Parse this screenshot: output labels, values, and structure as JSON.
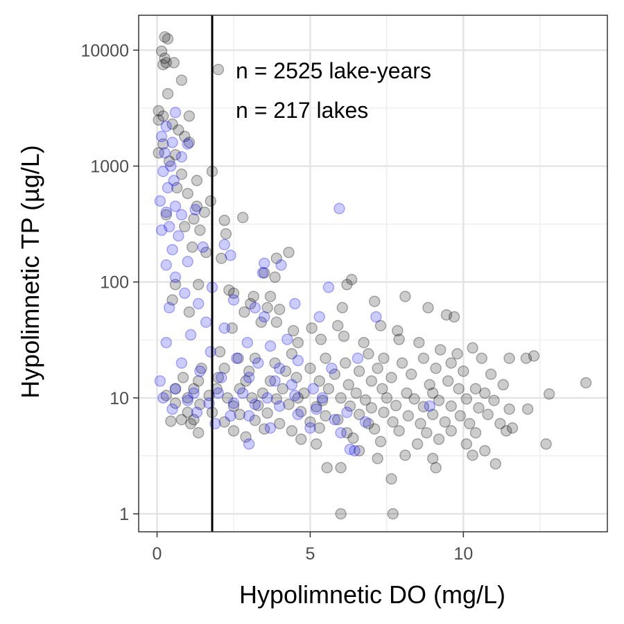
{
  "chart_data": {
    "type": "scatter",
    "title": "",
    "xlabel": "Hypolimnetic DO (mg/L)",
    "ylabel": "Hypolimnetic TP (µg/L)",
    "xlim": [
      -0.6,
      14.7
    ],
    "ylim": [
      0.7,
      20000
    ],
    "y_scale": "log10",
    "x_ticks": [
      0,
      5,
      10
    ],
    "x_tick_labels": [
      "0",
      "5",
      "10"
    ],
    "y_ticks": [
      1,
      10,
      100,
      1000,
      10000
    ],
    "y_tick_labels": [
      "1",
      "10",
      "100",
      "1000",
      "10000"
    ],
    "grid": true,
    "legend": "none",
    "vline": {
      "x": 1.8,
      "color": "#000000"
    },
    "annotations": [
      "n = 2525 lake-years",
      "n = 217 lakes"
    ],
    "series": [
      {
        "color": "#000000",
        "points": [
          [
            0.25,
            13000
          ],
          [
            0.35,
            12500
          ],
          [
            0.15,
            9800
          ],
          [
            0.25,
            8500
          ],
          [
            0.3,
            7800
          ],
          [
            0.2,
            7500
          ],
          [
            0.55,
            7800
          ],
          [
            2.0,
            6800
          ],
          [
            0.8,
            5500
          ],
          [
            0.35,
            4200
          ],
          [
            0.05,
            3000
          ],
          [
            0.2,
            2700
          ],
          [
            1.05,
            2700
          ],
          [
            0.05,
            2500
          ],
          [
            0.5,
            2300
          ],
          [
            0.7,
            2050
          ],
          [
            0.9,
            1800
          ],
          [
            1.05,
            1600
          ],
          [
            0.2,
            1550
          ],
          [
            0.05,
            1300
          ],
          [
            0.6,
            1250
          ],
          [
            0.4,
            1100
          ],
          [
            1.8,
            900
          ],
          [
            0.8,
            850
          ],
          [
            1.3,
            750
          ],
          [
            0.65,
            650
          ],
          [
            1.0,
            580
          ],
          [
            1.75,
            500
          ],
          [
            1.3,
            450
          ],
          [
            1.55,
            400
          ],
          [
            0.3,
            380
          ],
          [
            1.2,
            350
          ],
          [
            2.2,
            340
          ],
          [
            2.8,
            360
          ],
          [
            0.9,
            300
          ],
          [
            1.4,
            280
          ],
          [
            2.25,
            260
          ],
          [
            1.15,
            200
          ],
          [
            1.6,
            180
          ],
          [
            2.1,
            160
          ],
          [
            3.9,
            160
          ],
          [
            4.3,
            180
          ],
          [
            3.5,
            120
          ],
          [
            3.85,
            110
          ],
          [
            0.6,
            95
          ],
          [
            1.35,
            95
          ],
          [
            2.35,
            85
          ],
          [
            2.5,
            80
          ],
          [
            3.15,
            75
          ],
          [
            3.7,
            75
          ],
          [
            0.5,
            70
          ],
          [
            6.2,
            95
          ],
          [
            6.35,
            105
          ],
          [
            3.05,
            65
          ],
          [
            3.6,
            60
          ],
          [
            4.0,
            58
          ],
          [
            2.85,
            55
          ],
          [
            1.05,
            55
          ],
          [
            3.4,
            45
          ],
          [
            3.9,
            45
          ],
          [
            6.05,
            60
          ],
          [
            7.1,
            68
          ],
          [
            8.1,
            75
          ],
          [
            8.85,
            60
          ],
          [
            2.45,
            40
          ],
          [
            4.45,
            38
          ],
          [
            5.05,
            40
          ],
          [
            5.9,
            42
          ],
          [
            7.3,
            42
          ],
          [
            7.85,
            38
          ],
          [
            9.45,
            52
          ],
          [
            9.7,
            50
          ],
          [
            4.6,
            30
          ],
          [
            5.35,
            32
          ],
          [
            6.1,
            34
          ],
          [
            6.75,
            30
          ],
          [
            7.9,
            32
          ],
          [
            8.55,
            30
          ],
          [
            9.25,
            26
          ],
          [
            9.8,
            24
          ],
          [
            10.3,
            27
          ],
          [
            2.05,
            25
          ],
          [
            2.65,
            22
          ],
          [
            3.2,
            22
          ],
          [
            3.85,
            20
          ],
          [
            4.4,
            24
          ],
          [
            5.5,
            22
          ],
          [
            6.15,
            20
          ],
          [
            6.9,
            24
          ],
          [
            7.4,
            22
          ],
          [
            8.0,
            20
          ],
          [
            8.7,
            22
          ],
          [
            9.6,
            20
          ],
          [
            10.6,
            22
          ],
          [
            11.5,
            22
          ],
          [
            12.05,
            22
          ],
          [
            12.3,
            23
          ],
          [
            1.45,
            18
          ],
          [
            2.2,
            18
          ],
          [
            3.0,
            17
          ],
          [
            4.2,
            17
          ],
          [
            5.0,
            18
          ],
          [
            5.8,
            16
          ],
          [
            6.6,
            17
          ],
          [
            7.2,
            18
          ],
          [
            8.3,
            16
          ],
          [
            9.1,
            18
          ],
          [
            10.0,
            17
          ],
          [
            10.9,
            16
          ],
          [
            0.85,
            15
          ],
          [
            1.35,
            14
          ],
          [
            2.0,
            15
          ],
          [
            2.9,
            14
          ],
          [
            3.7,
            14
          ],
          [
            4.55,
            15
          ],
          [
            5.3,
            14
          ],
          [
            6.25,
            13
          ],
          [
            7.0,
            14
          ],
          [
            7.65,
            15
          ],
          [
            8.9,
            13
          ],
          [
            9.5,
            14
          ],
          [
            10.4,
            12
          ],
          [
            11.3,
            13
          ],
          [
            0.6,
            12
          ],
          [
            1.2,
            12
          ],
          [
            1.95,
            12
          ],
          [
            2.7,
            12
          ],
          [
            3.45,
            11
          ],
          [
            4.1,
            12
          ],
          [
            4.8,
            11
          ],
          [
            5.6,
            12
          ],
          [
            6.5,
            11
          ],
          [
            7.35,
            12
          ],
          [
            8.15,
            11
          ],
          [
            9.0,
            11
          ],
          [
            9.85,
            12
          ],
          [
            10.7,
            11
          ],
          [
            12.8,
            10.8
          ],
          [
            14.0,
            13.5
          ],
          [
            0.3,
            10.5
          ],
          [
            1.0,
            10
          ],
          [
            1.7,
            10.5
          ],
          [
            2.3,
            10
          ],
          [
            3.1,
            10
          ],
          [
            3.9,
            9.8
          ],
          [
            4.6,
            10
          ],
          [
            5.4,
            9.5
          ],
          [
            6.0,
            10
          ],
          [
            6.8,
            9.6
          ],
          [
            7.5,
            10
          ],
          [
            8.4,
            9.8
          ],
          [
            9.2,
            9.5
          ],
          [
            10.1,
            9.8
          ],
          [
            11.0,
            9.5
          ],
          [
            0.6,
            9
          ],
          [
            1.4,
            8.8
          ],
          [
            2.5,
            8.5
          ],
          [
            3.3,
            8.6
          ],
          [
            4.3,
            8.8
          ],
          [
            5.2,
            8.4
          ],
          [
            6.3,
            8.5
          ],
          [
            7.0,
            8.2
          ],
          [
            7.8,
            8.6
          ],
          [
            8.7,
            8.4
          ],
          [
            9.6,
            8.5
          ],
          [
            10.5,
            8.2
          ],
          [
            11.5,
            8.0
          ],
          [
            12.1,
            8.0
          ],
          [
            1.0,
            7.5
          ],
          [
            1.8,
            7.5
          ],
          [
            2.7,
            7.2
          ],
          [
            3.6,
            7.4
          ],
          [
            4.7,
            7.6
          ],
          [
            5.5,
            7.0
          ],
          [
            6.6,
            7.2
          ],
          [
            7.4,
            7.5
          ],
          [
            8.2,
            7.0
          ],
          [
            9.0,
            7.2
          ],
          [
            9.9,
            7.0
          ],
          [
            10.8,
            7.2
          ],
          [
            0.8,
            6.5
          ],
          [
            1.2,
            6.5
          ],
          [
            2.2,
            6.2
          ],
          [
            3.2,
            6.4
          ],
          [
            4.0,
            6.0
          ],
          [
            5.0,
            6.2
          ],
          [
            5.9,
            6.5
          ],
          [
            6.9,
            6.0
          ],
          [
            7.7,
            6.2
          ],
          [
            8.6,
            6.0
          ],
          [
            9.4,
            6.2
          ],
          [
            10.2,
            6.0
          ],
          [
            11.2,
            6.0
          ],
          [
            11.6,
            5.5
          ],
          [
            12.7,
            4.0
          ],
          [
            0.45,
            6.3
          ],
          [
            1.1,
            6.0
          ],
          [
            1.35,
            5.0
          ],
          [
            2.5,
            5.2
          ],
          [
            3.5,
            5.4
          ],
          [
            4.4,
            5.2
          ],
          [
            5.3,
            5.5
          ],
          [
            6.2,
            5.0
          ],
          [
            7.1,
            5.4
          ],
          [
            7.9,
            5.2
          ],
          [
            8.8,
            5.0
          ],
          [
            9.6,
            5.2
          ],
          [
            10.4,
            5.0
          ],
          [
            11.4,
            5.2
          ],
          [
            2.9,
            4.6
          ],
          [
            4.7,
            4.4
          ],
          [
            5.2,
            4.0
          ],
          [
            6.4,
            4.5
          ],
          [
            7.3,
            4.2
          ],
          [
            8.5,
            4.0
          ],
          [
            9.2,
            4.4
          ],
          [
            10.1,
            4.0
          ],
          [
            10.7,
            3.5
          ],
          [
            6.6,
            3.5
          ],
          [
            7.2,
            3.0
          ],
          [
            8.1,
            3.2
          ],
          [
            9.0,
            3.0
          ],
          [
            10.3,
            3.2
          ],
          [
            5.55,
            2.5
          ],
          [
            6.0,
            2.5
          ],
          [
            7.65,
            2.0
          ],
          [
            9.1,
            2.5
          ],
          [
            11.05,
            2.7
          ],
          [
            6.0,
            1.0
          ],
          [
            7.7,
            1.0
          ]
        ]
      },
      {
        "color": "#0000ff",
        "points": [
          [
            0.6,
            2900
          ],
          [
            0.3,
            2200
          ],
          [
            0.15,
            1800
          ],
          [
            0.5,
            1600
          ],
          [
            1.0,
            1550
          ],
          [
            0.25,
            1300
          ],
          [
            0.8,
            1200
          ],
          [
            0.45,
            1000
          ],
          [
            0.2,
            900
          ],
          [
            0.55,
            750
          ],
          [
            0.35,
            650
          ],
          [
            0.1,
            500
          ],
          [
            0.6,
            450
          ],
          [
            0.3,
            400
          ],
          [
            1.25,
            420
          ],
          [
            0.8,
            380
          ],
          [
            0.4,
            300
          ],
          [
            0.15,
            280
          ],
          [
            0.7,
            250
          ],
          [
            1.5,
            200
          ],
          [
            2.2,
            210
          ],
          [
            0.5,
            190
          ],
          [
            2.4,
            170
          ],
          [
            1.0,
            150
          ],
          [
            0.3,
            140
          ],
          [
            3.5,
            145
          ],
          [
            4.05,
            140
          ],
          [
            3.45,
            120
          ],
          [
            0.6,
            110
          ],
          [
            4.5,
            65
          ],
          [
            5.95,
            430
          ],
          [
            5.6,
            90
          ],
          [
            1.8,
            90
          ],
          [
            0.9,
            80
          ],
          [
            2.5,
            70
          ],
          [
            1.35,
            65
          ],
          [
            3.2,
            60
          ],
          [
            0.4,
            60
          ],
          [
            3.5,
            50
          ],
          [
            5.3,
            50
          ],
          [
            7.15,
            50
          ],
          [
            1.6,
            45
          ],
          [
            2.2,
            40
          ],
          [
            1.1,
            35
          ],
          [
            2.95,
            30
          ],
          [
            3.7,
            28
          ],
          [
            4.25,
            32
          ],
          [
            0.3,
            30
          ],
          [
            1.75,
            25
          ],
          [
            2.6,
            22
          ],
          [
            3.3,
            20
          ],
          [
            4.0,
            18
          ],
          [
            4.6,
            21
          ],
          [
            5.7,
            18
          ],
          [
            6.55,
            22
          ],
          [
            0.8,
            20
          ],
          [
            1.4,
            17
          ],
          [
            2.1,
            15
          ],
          [
            3.0,
            15
          ],
          [
            3.85,
            14
          ],
          [
            4.4,
            13
          ],
          [
            5.1,
            12
          ],
          [
            0.1,
            14
          ],
          [
            0.6,
            12
          ],
          [
            1.2,
            11
          ],
          [
            2.0,
            11
          ],
          [
            2.8,
            11
          ],
          [
            3.6,
            10
          ],
          [
            4.5,
            10.5
          ],
          [
            5.4,
            10
          ],
          [
            0.2,
            10
          ],
          [
            1.0,
            9.5
          ],
          [
            1.7,
            9
          ],
          [
            2.5,
            9
          ],
          [
            3.2,
            8.8
          ],
          [
            4.0,
            8.5
          ],
          [
            5.2,
            8
          ],
          [
            6.2,
            7.5
          ],
          [
            8.9,
            8.5
          ],
          [
            0.5,
            8
          ],
          [
            1.3,
            7.5
          ],
          [
            2.4,
            7
          ],
          [
            3.0,
            7
          ],
          [
            4.6,
            7.2
          ],
          [
            5.8,
            6.5
          ],
          [
            6.8,
            6.2
          ],
          [
            1.9,
            6
          ],
          [
            3.7,
            5.5
          ],
          [
            5.0,
            5.5
          ],
          [
            6.0,
            5.0
          ],
          [
            3.0,
            4.0
          ],
          [
            6.3,
            3.6
          ],
          [
            6.45,
            3.5
          ]
        ]
      }
    ]
  }
}
